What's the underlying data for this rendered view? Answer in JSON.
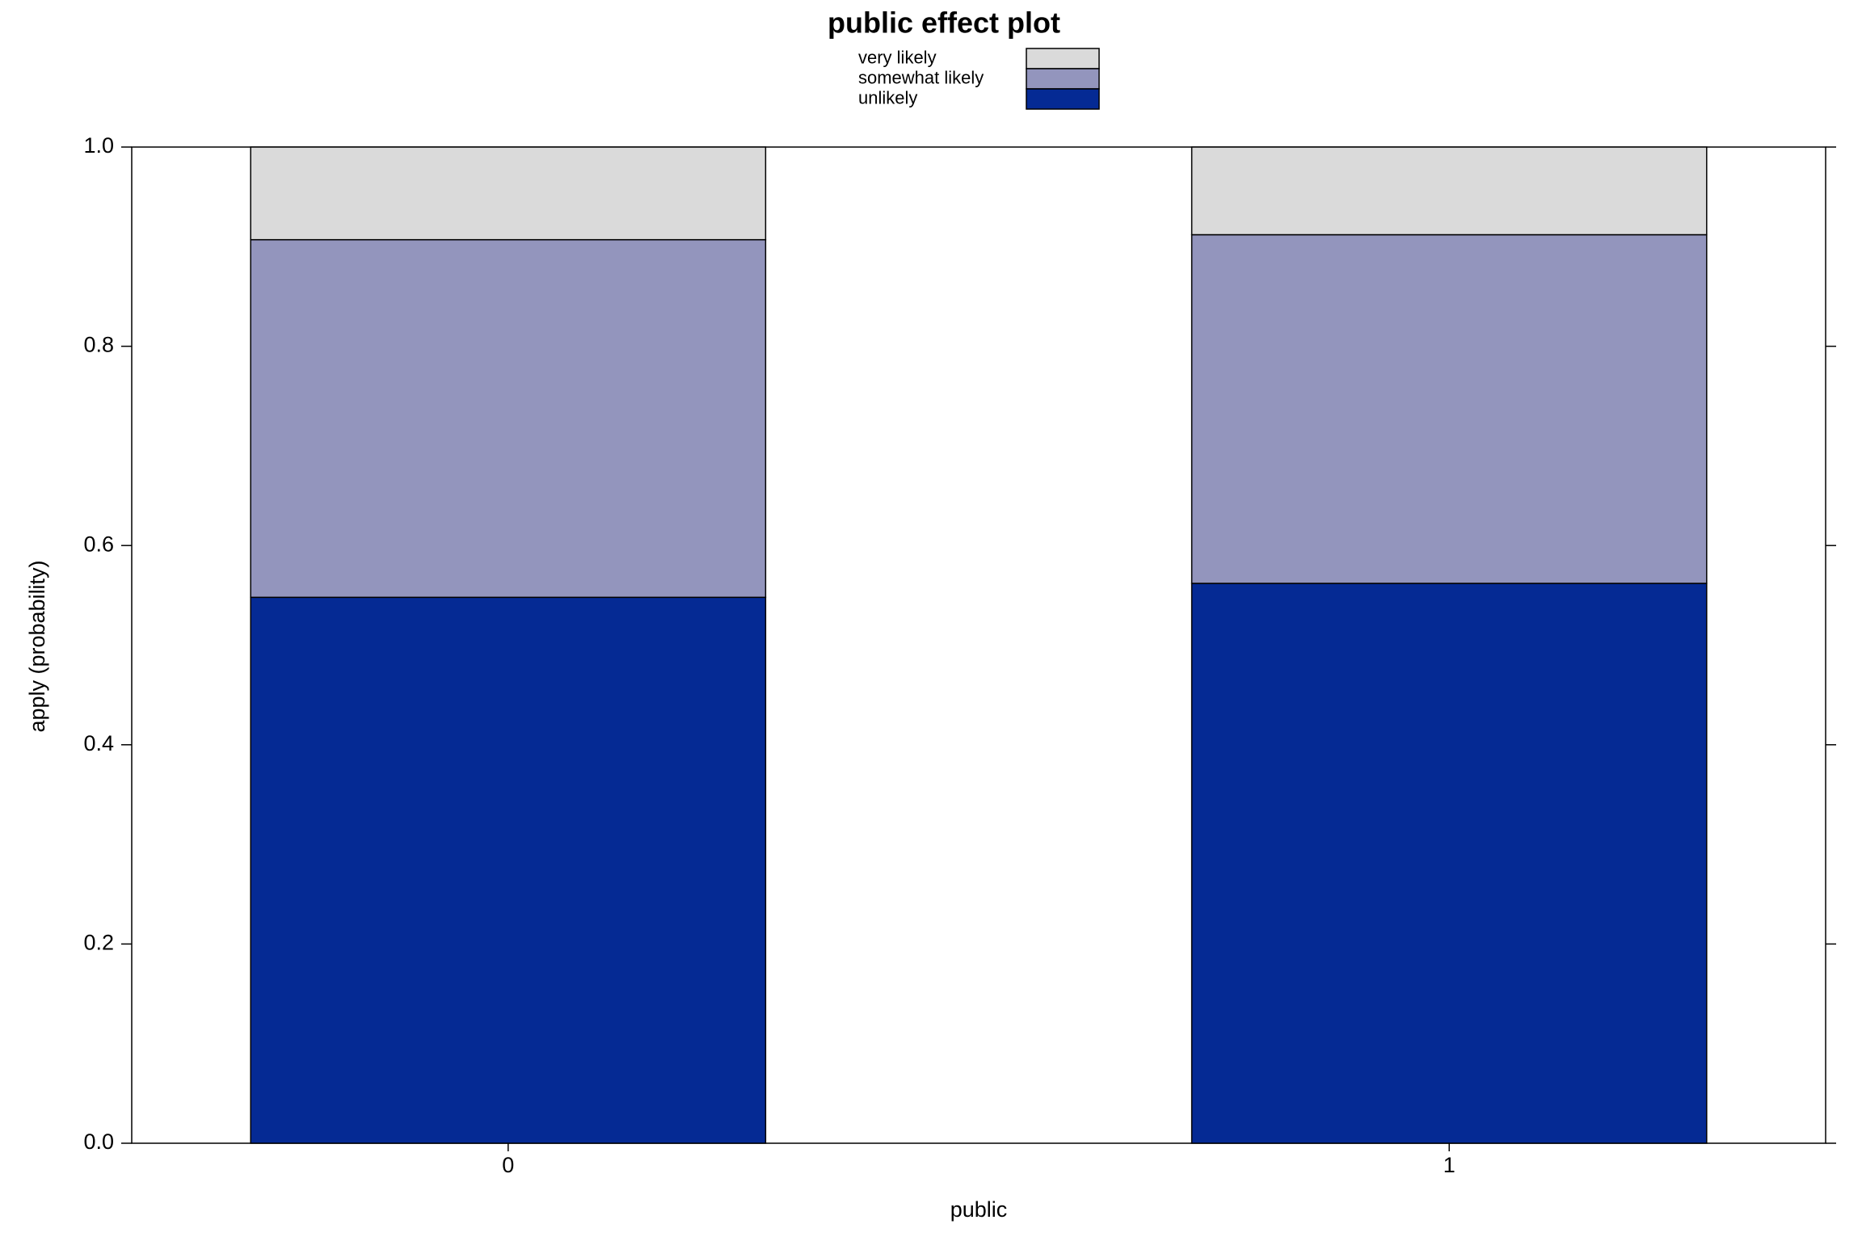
{
  "chart_data": {
    "type": "stacked_bar",
    "title": "public effect plot",
    "x_label": "public",
    "y_label": "apply (probability)",
    "categories": [
      "0",
      "1"
    ],
    "series": [
      {
        "name": "unlikely",
        "color": "#052a94",
        "values": [
          0.548,
          0.562
        ]
      },
      {
        "name": "somewhat likely",
        "color": "#9395bd",
        "values": [
          0.359,
          0.35
        ]
      },
      {
        "name": "very likely",
        "color": "#dadada",
        "values": [
          0.093,
          0.088
        ]
      }
    ],
    "ylim": [
      0,
      1
    ],
    "yticks": [
      {
        "value": 0,
        "label": "0.0"
      },
      0.2,
      0.4,
      0.6,
      0.8,
      {
        "value": 1,
        "label": "1.0"
      }
    ]
  }
}
